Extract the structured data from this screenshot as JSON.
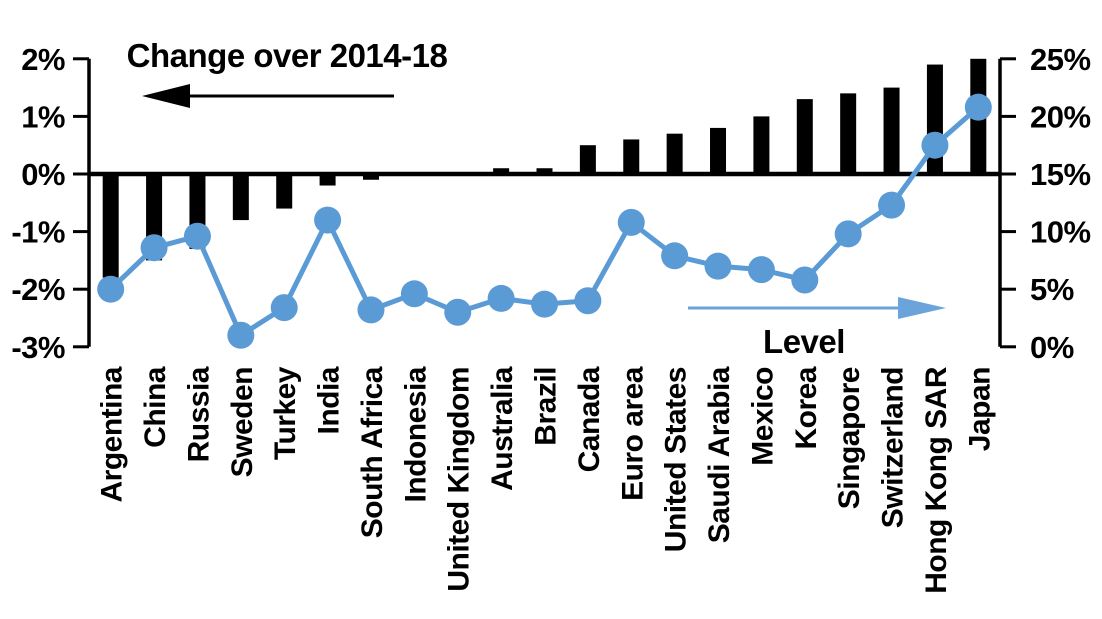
{
  "chart_data": {
    "type": "combo-bar-line",
    "categories": [
      "Argentina",
      "China",
      "Russia",
      "Sweden",
      "Turkey",
      "India",
      "South Africa",
      "Indonesia",
      "United Kingdom",
      "Australia",
      "Brazil",
      "Canada",
      "Euro area",
      "United States",
      "Saudi Arabia",
      "Mexico",
      "Korea",
      "Singapore",
      "Switzerland",
      "Hong Kong SAR",
      "Japan"
    ],
    "series": [
      {
        "name": "Change over 2014-18",
        "type": "bar",
        "axis": "left",
        "color": "#000000",
        "values": [
          -1.8,
          -1.5,
          -1.3,
          -0.8,
          -0.6,
          -0.2,
          -0.1,
          0.0,
          0.0,
          0.1,
          0.1,
          0.5,
          0.6,
          0.7,
          0.8,
          1.0,
          1.3,
          1.4,
          1.5,
          1.9,
          2.0
        ]
      },
      {
        "name": "Level",
        "type": "line",
        "axis": "right",
        "color": "#5B9BD5",
        "values": [
          5.0,
          8.6,
          9.6,
          1.0,
          3.4,
          11.0,
          3.2,
          4.6,
          3.0,
          4.2,
          3.7,
          4.0,
          10.8,
          7.9,
          7.0,
          6.7,
          5.8,
          9.8,
          12.3,
          17.5,
          20.8
        ]
      }
    ],
    "left_axis": {
      "labels": [
        "2%",
        "1%",
        "0%",
        "-1%",
        "-2%",
        "-3%"
      ],
      "values": [
        2,
        1,
        0,
        -1,
        -2,
        -3
      ],
      "min": -3,
      "max": 2
    },
    "right_axis": {
      "labels": [
        "25%",
        "20%",
        "15%",
        "10%",
        "5%",
        "0%"
      ],
      "values": [
        25,
        20,
        15,
        10,
        5,
        0
      ],
      "min": 0,
      "max": 25
    },
    "annotations": {
      "bars_label": "Change over 2014-18",
      "bars_arrow_direction": "left",
      "line_label": "Level",
      "line_arrow_direction": "right"
    },
    "layout_hints": {
      "grid": "off",
      "zero_baseline_shared_with_right_15pct": true
    },
    "colors": {
      "bars": "#000000",
      "line": "#5B9BD5",
      "arrow_blue": "#6BA3DB",
      "background": "#FFFFFF"
    }
  }
}
